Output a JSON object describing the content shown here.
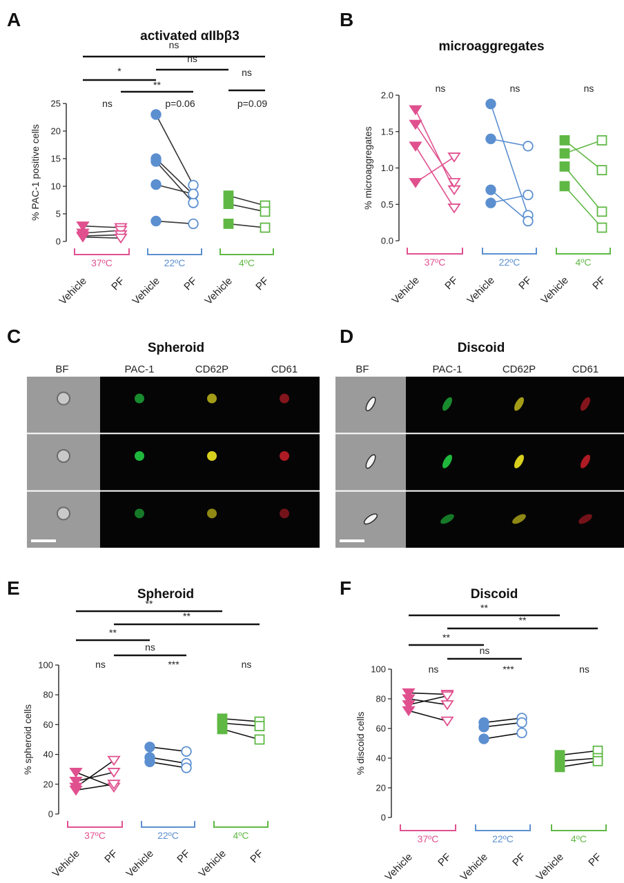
{
  "colors": {
    "c37": "#e0508f",
    "c22": "#5b8fd0",
    "c4": "#5fb844"
  },
  "microscopy": {
    "C": {
      "letter": "C",
      "title": "Spheroid",
      "channels": [
        "BF",
        "PAC-1",
        "CD62P",
        "CD61"
      ]
    },
    "D": {
      "letter": "D",
      "title": "Discoid",
      "channels": [
        "BF",
        "PAC-1",
        "CD62P",
        "CD61"
      ]
    }
  },
  "chart_data": [
    {
      "panel": "A",
      "type": "scatter",
      "title": "activated αIIbβ3",
      "ylabel": "% PAC-1 positive cells",
      "ylim": [
        0,
        25
      ],
      "yticks": [
        0,
        5,
        10,
        15,
        20,
        25
      ],
      "groups": [
        {
          "label": "37ºC",
          "color_key": "c37",
          "marker": "triangle",
          "categories": [
            "Vehicle",
            "PF"
          ],
          "pairs": [
            [
              2.8,
              2.5
            ],
            [
              1.5,
              2.0
            ],
            [
              1.0,
              1.2
            ],
            [
              0.8,
              0.6
            ]
          ]
        },
        {
          "label": "22ºC",
          "color_key": "c22",
          "marker": "circle",
          "categories": [
            "Vehicle",
            "PF"
          ],
          "pairs": [
            [
              23,
              10.2
            ],
            [
              15,
              8.5
            ],
            [
              14.5,
              7.0
            ],
            [
              10.3,
              8.6
            ],
            [
              3.7,
              3.2
            ]
          ]
        },
        {
          "label": "4ºC",
          "color_key": "c4",
          "marker": "square",
          "categories": [
            "Vehicle",
            "PF"
          ],
          "pairs": [
            [
              8.3,
              6.5
            ],
            [
              6.8,
              5.4
            ],
            [
              3.2,
              2.5
            ]
          ]
        }
      ],
      "within_sig": [
        "ns",
        "p=0.06",
        "p=0.09"
      ],
      "comparisons": [
        {
          "from": 0,
          "to": 5,
          "text": "ns"
        },
        {
          "from": 2,
          "to": 4,
          "text": "ns"
        },
        {
          "from": 4,
          "to": 5,
          "text": "ns"
        },
        {
          "from": 0,
          "to": 2,
          "text": "*"
        },
        {
          "from": 1,
          "to": 3,
          "text": "**"
        }
      ]
    },
    {
      "panel": "B",
      "type": "scatter",
      "title": "microaggregates",
      "ylabel": "% microaggregates",
      "ylim": [
        0,
        2.0
      ],
      "yticks": [
        "0.0",
        "0.5",
        "1.0",
        "1.5",
        "2.0"
      ],
      "groups": [
        {
          "label": "37ºC",
          "color_key": "c37",
          "marker": "triangle",
          "categories": [
            "Vehicle",
            "PF"
          ],
          "pairs": [
            [
              1.8,
              0.7
            ],
            [
              1.6,
              0.8
            ],
            [
              1.3,
              0.45
            ],
            [
              0.8,
              1.15
            ]
          ]
        },
        {
          "label": "22ºC",
          "color_key": "c22",
          "marker": "circle",
          "categories": [
            "Vehicle",
            "PF"
          ],
          "pairs": [
            [
              1.88,
              0.35
            ],
            [
              1.4,
              1.3
            ],
            [
              0.7,
              0.27
            ],
            [
              0.52,
              0.63
            ]
          ]
        },
        {
          "label": "4ºC",
          "color_key": "c4",
          "marker": "square",
          "categories": [
            "Vehicle",
            "PF"
          ],
          "pairs": [
            [
              1.38,
              0.97
            ],
            [
              1.2,
              1.38
            ],
            [
              1.02,
              0.4
            ],
            [
              0.75,
              0.18
            ]
          ]
        }
      ],
      "within_sig": [
        "ns",
        "ns",
        "ns"
      ],
      "comparisons": []
    },
    {
      "panel": "E",
      "type": "scatter",
      "title": "Spheroid",
      "ylabel": "% spheroid cells",
      "ylim": [
        0,
        100
      ],
      "yticks": [
        0,
        20,
        40,
        60,
        80,
        100
      ],
      "groups": [
        {
          "label": "37ºC",
          "color_key": "c37",
          "marker": "triangle",
          "categories": [
            "Vehicle",
            "PF"
          ],
          "pairs": [
            [
              28,
              18
            ],
            [
              22,
              28
            ],
            [
              18,
              36
            ],
            [
              16,
              20
            ]
          ]
        },
        {
          "label": "22ºC",
          "color_key": "c22",
          "marker": "circle",
          "categories": [
            "Vehicle",
            "PF"
          ],
          "pairs": [
            [
              45,
              42
            ],
            [
              38,
              34
            ],
            [
              35,
              31
            ]
          ]
        },
        {
          "label": "4ºC",
          "color_key": "c4",
          "marker": "square",
          "categories": [
            "Vehicle",
            "PF"
          ],
          "pairs": [
            [
              64,
              62
            ],
            [
              61,
              59
            ],
            [
              57,
              50
            ]
          ]
        }
      ],
      "within_sig": [
        "ns",
        "***",
        "ns"
      ],
      "comparisons": [
        {
          "from": 0,
          "to": 4,
          "text": "**"
        },
        {
          "from": 1,
          "to": 5,
          "text": "**"
        },
        {
          "from": 0,
          "to": 2,
          "text": "**"
        },
        {
          "from": 1,
          "to": 3,
          "text": "ns"
        }
      ]
    },
    {
      "panel": "F",
      "type": "scatter",
      "title": "Discoid",
      "ylabel": "% discoid cells",
      "ylim": [
        0,
        100
      ],
      "yticks": [
        0,
        20,
        40,
        60,
        80,
        100
      ],
      "groups": [
        {
          "label": "37ºC",
          "color_key": "c37",
          "marker": "triangle",
          "categories": [
            "Vehicle",
            "PF"
          ],
          "pairs": [
            [
              84,
              83
            ],
            [
              80,
              76
            ],
            [
              76,
              82
            ],
            [
              72,
              65
            ]
          ]
        },
        {
          "label": "22ºC",
          "color_key": "c22",
          "marker": "circle",
          "categories": [
            "Vehicle",
            "PF"
          ],
          "pairs": [
            [
              64,
              67
            ],
            [
              61,
              64
            ],
            [
              53,
              57
            ]
          ]
        },
        {
          "label": "4ºC",
          "color_key": "c4",
          "marker": "square",
          "categories": [
            "Vehicle",
            "PF"
          ],
          "pairs": [
            [
              42,
              45
            ],
            [
              38,
              40
            ],
            [
              34,
              38
            ]
          ]
        }
      ],
      "within_sig": [
        "ns",
        "***",
        "ns"
      ],
      "comparisons": [
        {
          "from": 0,
          "to": 4,
          "text": "**"
        },
        {
          "from": 1,
          "to": 5,
          "text": "**"
        },
        {
          "from": 0,
          "to": 2,
          "text": "**"
        },
        {
          "from": 1,
          "to": 3,
          "text": "ns"
        }
      ]
    }
  ]
}
